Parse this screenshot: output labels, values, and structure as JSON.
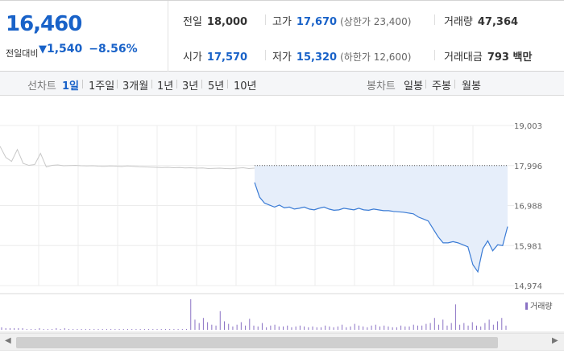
{
  "quote": {
    "price": "16,460",
    "change_label": "전일대비",
    "change_arrow": "▼",
    "change_value": "1,540",
    "change_pct": "−8.56%",
    "prev_close": {
      "label": "전일",
      "value": "18,000"
    },
    "open": {
      "label": "시가",
      "value": "17,570"
    },
    "high": {
      "label": "고가",
      "value": "17,670",
      "limit": "(상한가 23,400)"
    },
    "low": {
      "label": "저가",
      "value": "15,320",
      "limit": "(하한가 12,600)"
    },
    "volume": {
      "label": "거래량",
      "value": "47,364"
    },
    "trade_value": {
      "label": "거래대금",
      "value": "793 백만"
    }
  },
  "period_bar": {
    "line_label": "선차트",
    "line_periods": [
      "1일",
      "1주일",
      "3개월",
      "1년",
      "3년",
      "5년",
      "10년"
    ],
    "active_period": "1일",
    "candle_label": "봉차트",
    "candle_periods": [
      "일봉",
      "주봉",
      "월봉"
    ]
  },
  "colors": {
    "accent_blue": "#1962c8",
    "line_today": "#3a7bd5",
    "area_fill": "#e6eefa",
    "line_prev": "#c8c8c8",
    "volume_bar": "#8a72c4"
  },
  "chart_data": {
    "type": "line",
    "y_ticks": [
      "19,003",
      "17,996",
      "16,988",
      "15,981",
      "14,974"
    ],
    "ylim": [
      14974,
      19003
    ],
    "prev_close_line": 17996,
    "legend": "거래량",
    "grid": true,
    "series": [
      {
        "values": [
          18480,
          18200,
          18100,
          18400,
          18050,
          18000,
          18020,
          18300,
          17960,
          18000,
          18010,
          17990,
          17995,
          18000,
          17990,
          17985,
          17990,
          17980,
          17975,
          17985,
          17980,
          17970,
          17985,
          17975,
          17965,
          17960,
          17955,
          17950,
          17945,
          17950,
          17940,
          17945,
          17935,
          17940,
          17930,
          17935,
          17920,
          17925,
          17930,
          17920,
          17915,
          17930,
          17940,
          17920,
          17930
        ]
      },
      {
        "values": [
          17570,
          17200,
          17050,
          17000,
          16950,
          17000,
          16930,
          16950,
          16900,
          16920,
          16950,
          16900,
          16880,
          16920,
          16950,
          16900,
          16870,
          16880,
          16920,
          16900,
          16880,
          16920,
          16880,
          16870,
          16900,
          16880,
          16860,
          16860,
          16840,
          16830,
          16820,
          16800,
          16780,
          16700,
          16650,
          16600,
          16400,
          16200,
          16050,
          16050,
          16080,
          16050,
          16000,
          15950,
          15500,
          15320,
          15900,
          16100,
          15850,
          16000,
          15980,
          16460
        ]
      }
    ],
    "volume": [
      3,
      2,
      2,
      2,
      2,
      2,
      1,
      1,
      1,
      2,
      1,
      1,
      1,
      2,
      1,
      2,
      1,
      1,
      1,
      1,
      1,
      1,
      1,
      1,
      1,
      1,
      1,
      1,
      1,
      1,
      1,
      1,
      1,
      1,
      1,
      1,
      1,
      1,
      1,
      1,
      1,
      1,
      1,
      1,
      1,
      36,
      12,
      8,
      14,
      9,
      6,
      5,
      22,
      10,
      7,
      4,
      6,
      9,
      5,
      13,
      5,
      4,
      8,
      3,
      5,
      6,
      4,
      4,
      5,
      3,
      4,
      5,
      4,
      3,
      4,
      3,
      3,
      5,
      4,
      3,
      4,
      6,
      3,
      4,
      7,
      5,
      4,
      3,
      5,
      6,
      4,
      5,
      4,
      3,
      3,
      5,
      4,
      4,
      6,
      5,
      5,
      7,
      8,
      14,
      6,
      12,
      5,
      8,
      30,
      6,
      8,
      5,
      9,
      5,
      4,
      8,
      12,
      6,
      10,
      14,
      5
    ]
  }
}
